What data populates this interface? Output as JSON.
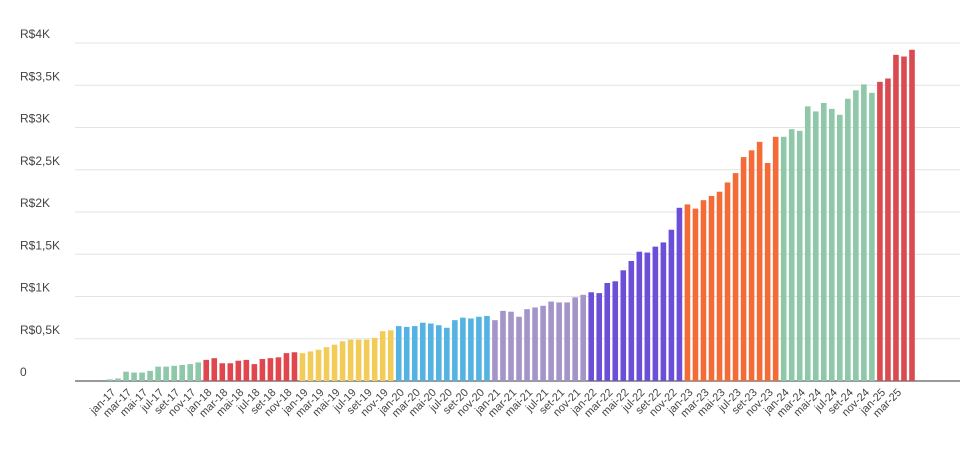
{
  "chart_data": {
    "type": "bar",
    "categories": [
      "jan-17",
      null,
      "mar-17",
      null,
      "mai-17",
      null,
      "jul-17",
      null,
      "set-17",
      null,
      "nov-17",
      null,
      "jan-18",
      null,
      "mar-18",
      null,
      "mai-18",
      null,
      "jul-18",
      null,
      "set-18",
      null,
      "nov-18",
      null,
      "jan-19",
      null,
      "mar-19",
      null,
      "mai-19",
      null,
      "jul-19",
      null,
      "set-19",
      null,
      "nov-19",
      null,
      "jan-20",
      null,
      "mar-20",
      null,
      "mai-20",
      null,
      "jul-20",
      null,
      "set-20",
      null,
      "nov-20",
      null,
      "jan-21",
      null,
      "mar-21",
      null,
      "mai-21",
      null,
      "jul-21",
      null,
      "set-21",
      null,
      "nov-21",
      null,
      "jan-22",
      null,
      "mar-22",
      null,
      "mai-22",
      null,
      "jul-22",
      null,
      "set-22",
      null,
      "nov-22",
      null,
      "jan-23",
      null,
      "mar-23",
      null,
      "mai-23",
      null,
      "jul-23",
      null,
      "set-23",
      null,
      "nov-23",
      null,
      "jan-24",
      null,
      "mar-24",
      null,
      "mai-24",
      null,
      "jul-24",
      null,
      "set-24",
      null,
      "nov-24",
      null,
      "jan-25",
      null,
      "mar-25",
      null,
      null
    ],
    "values": [
      20,
      30,
      110,
      100,
      100,
      120,
      170,
      170,
      180,
      190,
      200,
      220,
      250,
      270,
      210,
      210,
      240,
      250,
      200,
      260,
      270,
      280,
      330,
      340,
      330,
      350,
      370,
      400,
      430,
      470,
      490,
      490,
      490,
      510,
      590,
      600,
      650,
      640,
      650,
      690,
      680,
      660,
      630,
      720,
      750,
      740,
      760,
      770,
      720,
      830,
      820,
      760,
      850,
      870,
      890,
      940,
      930,
      930,
      990,
      1020,
      1050,
      1040,
      1160,
      1180,
      1310,
      1420,
      1530,
      1520,
      1590,
      1640,
      1790,
      2050,
      2090,
      2040,
      2140,
      2190,
      2240,
      2350,
      2460,
      2650,
      2730,
      2830,
      2580,
      2890,
      2890,
      2980,
      2960,
      3250,
      3190,
      3290,
      3220,
      3150,
      3340,
      3440,
      3510,
      3410,
      3540,
      3580,
      3860,
      3840,
      3920
    ],
    "colors": [
      "#8fc8a9",
      "#8fc8a9",
      "#8fc8a9",
      "#8fc8a9",
      "#8fc8a9",
      "#8fc8a9",
      "#8fc8a9",
      "#8fc8a9",
      "#8fc8a9",
      "#8fc8a9",
      "#8fc8a9",
      "#8fc8a9",
      "#e0464d",
      "#e0464d",
      "#e0464d",
      "#e0464d",
      "#e0464d",
      "#e0464d",
      "#e0464d",
      "#e0464d",
      "#e0464d",
      "#e0464d",
      "#e0464d",
      "#e0464d",
      "#f2cc59",
      "#f2cc59",
      "#f2cc59",
      "#f2cc59",
      "#f2cc59",
      "#f2cc59",
      "#f2cc59",
      "#f2cc59",
      "#f2cc59",
      "#f2cc59",
      "#f2cc59",
      "#f2cc59",
      "#55b3e3",
      "#55b3e3",
      "#55b3e3",
      "#55b3e3",
      "#55b3e3",
      "#55b3e3",
      "#55b3e3",
      "#55b3e3",
      "#55b3e3",
      "#55b3e3",
      "#55b3e3",
      "#55b3e3",
      "#a594c8",
      "#a594c8",
      "#a594c8",
      "#a594c8",
      "#a594c8",
      "#a594c8",
      "#a594c8",
      "#a594c8",
      "#a594c8",
      "#a594c8",
      "#a594c8",
      "#a594c8",
      "#6c4fd6",
      "#6c4fd6",
      "#6c4fd6",
      "#6c4fd6",
      "#6c4fd6",
      "#6c4fd6",
      "#6c4fd6",
      "#6c4fd6",
      "#6c4fd6",
      "#6c4fd6",
      "#6c4fd6",
      "#6c4fd6",
      "#f36b37",
      "#f36b37",
      "#f36b37",
      "#f36b37",
      "#f36b37",
      "#f36b37",
      "#f36b37",
      "#f36b37",
      "#f36b37",
      "#f36b37",
      "#f36b37",
      "#f36b37",
      "#8fc8a9",
      "#8fc8a9",
      "#8fc8a9",
      "#8fc8a9",
      "#8fc8a9",
      "#8fc8a9",
      "#8fc8a9",
      "#8fc8a9",
      "#8fc8a9",
      "#8fc8a9",
      "#8fc8a9",
      "#8fc8a9",
      "#d94a51",
      "#d94a51",
      "#d94a51",
      "#d94a51",
      "#d94a51"
    ],
    "ylim": [
      0,
      4000
    ],
    "yticks": [
      {
        "value": 0,
        "label": "0"
      },
      {
        "value": 500,
        "label": "R$0,5K"
      },
      {
        "value": 1000,
        "label": "R$1K"
      },
      {
        "value": 1500,
        "label": "R$1,5K"
      },
      {
        "value": 2000,
        "label": "R$2K"
      },
      {
        "value": 2500,
        "label": "R$2,5K"
      },
      {
        "value": 3000,
        "label": "R$3K"
      },
      {
        "value": 3500,
        "label": "R$3,5K"
      },
      {
        "value": 4000,
        "label": "R$4K"
      }
    ],
    "grid": true
  }
}
